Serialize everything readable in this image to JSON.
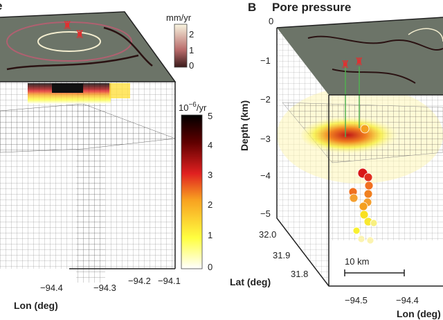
{
  "panel_a": {
    "title_fragment": "e",
    "surface_colorbar": {
      "unit": "mm/yr",
      "ticks": [
        "0",
        "1",
        "2"
      ],
      "colors": [
        "#3a1a1a",
        "#b86a6a",
        "#f5f0d8"
      ]
    },
    "strain_colorbar": {
      "unit_base": "10",
      "unit_exp": "−6",
      "unit_rest": "/yr",
      "ticks": [
        "0",
        "1",
        "2",
        "3",
        "4",
        "5"
      ],
      "colors": [
        "#ffffff",
        "#ffff40",
        "#f8a020",
        "#e02020",
        "#600000",
        "#000000"
      ]
    },
    "lon_ticks": [
      "−94.4",
      "−94.3",
      "−94.2",
      "−94.1"
    ],
    "lon_label": "Lon (deg)"
  },
  "panel_b": {
    "letter": "B",
    "title": "Pore pressure",
    "depth_ticks": [
      "0",
      "−1",
      "−2",
      "−3",
      "−4",
      "−5"
    ],
    "depth_label": "Depth (km)",
    "lat_ticks": [
      "32.0",
      "31.9",
      "31.8"
    ],
    "lat_label": "Lat (deg)",
    "lon_ticks": [
      "−94.5",
      "−94.4"
    ],
    "lon_label": "Lon (deg)",
    "scale_bar": "10 km"
  },
  "colors": {
    "well": "#e03030",
    "well_path": "#50b050",
    "surface": "#6c7468"
  }
}
